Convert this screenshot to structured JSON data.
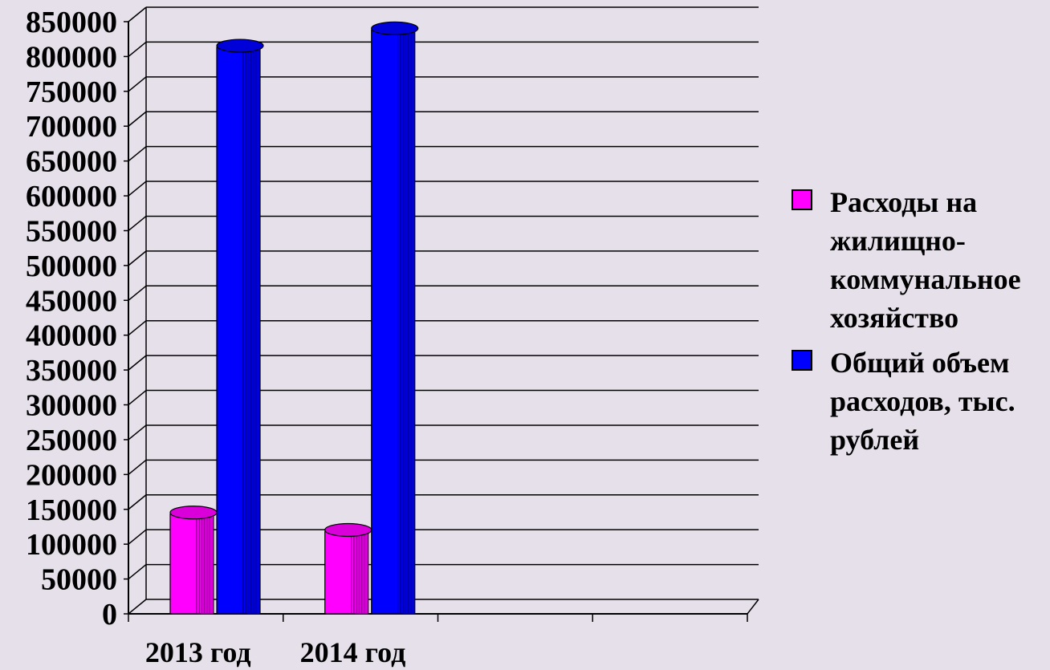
{
  "chart_data": {
    "type": "bar",
    "categories": [
      "2013 год",
      "2014 год",
      "",
      ""
    ],
    "series": [
      {
        "name": "Расходы на жилищно-коммунальное хозяйство",
        "color": "#ff00ff",
        "values": [
          150000,
          125000,
          null,
          null
        ]
      },
      {
        "name": "Общий объем расходов, тыс. рублей",
        "color": "#0000ff",
        "values": [
          820000,
          845000,
          null,
          null
        ]
      }
    ],
    "ylim": [
      0,
      850000
    ],
    "ytick_step": 50000,
    "yticks": [
      "0",
      "50000",
      "100000",
      "150000",
      "200000",
      "250000",
      "300000",
      "350000",
      "400000",
      "450000",
      "500000",
      "550000",
      "600000",
      "650000",
      "700000",
      "750000",
      "800000",
      "850000"
    ],
    "grid": true,
    "legend_position": "right",
    "style": "3d-cylinder"
  },
  "legend": {
    "items": [
      {
        "label": "Расходы на жилищно-коммунальное хозяйство",
        "color": "#ff00ff"
      },
      {
        "label": "Общий объем расходов, тыс. рублей",
        "color": "#0000ff"
      }
    ]
  }
}
